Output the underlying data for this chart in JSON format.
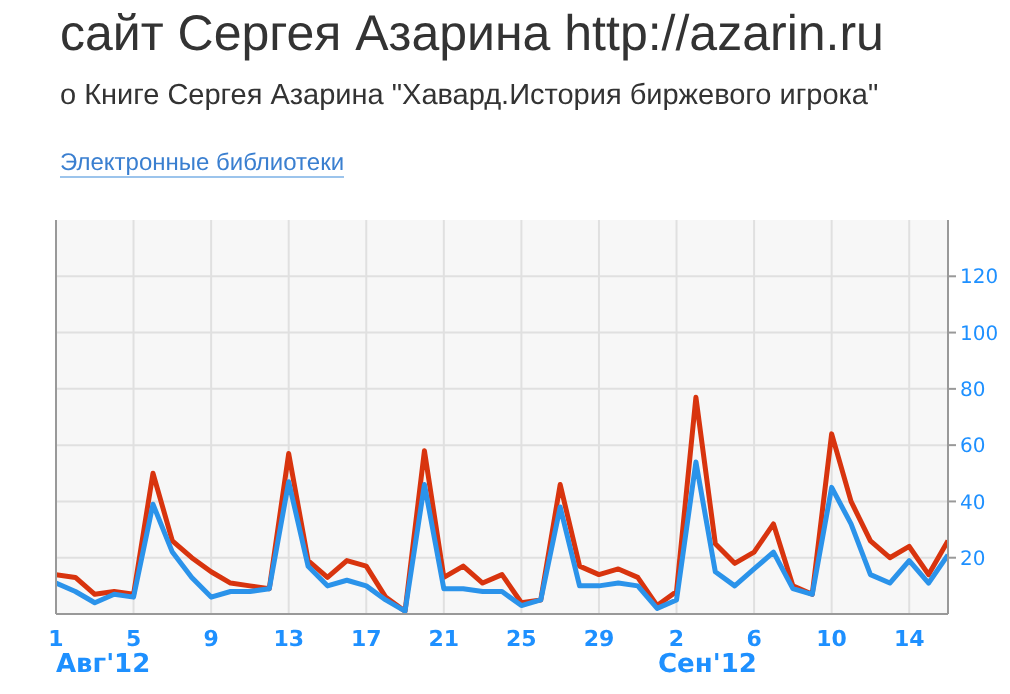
{
  "chart_data": {
    "type": "line",
    "title": "сайт Сергея Азарина http://azarin.ru",
    "subtitle": "о Книге Сергея Азарина \"Хавард.История биржевого игрока\"",
    "annotations": [
      "Электронные библиотеки",
      "Авг'12",
      "Сен'12"
    ],
    "x": [
      "2012-08-01",
      "2012-08-02",
      "2012-08-03",
      "2012-08-04",
      "2012-08-05",
      "2012-08-06",
      "2012-08-07",
      "2012-08-08",
      "2012-08-09",
      "2012-08-10",
      "2012-08-11",
      "2012-08-12",
      "2012-08-13",
      "2012-08-14",
      "2012-08-15",
      "2012-08-16",
      "2012-08-17",
      "2012-08-18",
      "2012-08-19",
      "2012-08-20",
      "2012-08-21",
      "2012-08-22",
      "2012-08-23",
      "2012-08-24",
      "2012-08-25",
      "2012-08-26",
      "2012-08-27",
      "2012-08-28",
      "2012-08-29",
      "2012-08-30",
      "2012-08-31",
      "2012-09-01",
      "2012-09-02",
      "2012-09-03",
      "2012-09-04",
      "2012-09-05",
      "2012-09-06",
      "2012-09-07",
      "2012-09-08",
      "2012-09-09",
      "2012-09-10",
      "2012-09-11",
      "2012-09-12",
      "2012-09-13",
      "2012-09-14",
      "2012-09-15",
      "2012-09-16"
    ],
    "series": [
      {
        "color": "#d8340e",
        "values": [
          14,
          13,
          7,
          8,
          7,
          50,
          26,
          20,
          15,
          11,
          10,
          9,
          57,
          19,
          13,
          19,
          17,
          6,
          1,
          58,
          13,
          17,
          11,
          14,
          4,
          5,
          46,
          17,
          14,
          16,
          13,
          3,
          8,
          77,
          25,
          18,
          22,
          32,
          10,
          7,
          64,
          40,
          26,
          20,
          24,
          14,
          26
        ]
      },
      {
        "color": "#2b93ea",
        "values": [
          11,
          8,
          4,
          7,
          6,
          39,
          22,
          13,
          6,
          8,
          8,
          9,
          47,
          17,
          10,
          12,
          10,
          5,
          1,
          46,
          9,
          9,
          8,
          8,
          3,
          5,
          38,
          10,
          10,
          11,
          10,
          2,
          5,
          54,
          15,
          10,
          16,
          22,
          9,
          7,
          45,
          32,
          14,
          11,
          19,
          11,
          21
        ]
      }
    ],
    "xlim": [
      "2012-08-01",
      "2012-09-16"
    ],
    "xticks": [
      {
        "value": "2012-08-01",
        "label": "1"
      },
      {
        "value": "2012-08-05",
        "label": "5"
      },
      {
        "value": "2012-08-09",
        "label": "9"
      },
      {
        "value": "2012-08-13",
        "label": "13"
      },
      {
        "value": "2012-08-17",
        "label": "17"
      },
      {
        "value": "2012-08-21",
        "label": "21"
      },
      {
        "value": "2012-08-25",
        "label": "25"
      },
      {
        "value": "2012-08-29",
        "label": "29"
      },
      {
        "value": "2012-09-02",
        "label": "2"
      },
      {
        "value": "2012-09-06",
        "label": "6"
      },
      {
        "value": "2012-09-10",
        "label": "10"
      },
      {
        "value": "2012-09-14",
        "label": "14"
      }
    ],
    "ylim": [
      0,
      140
    ],
    "yticks": [
      20,
      40,
      60,
      80,
      100,
      120
    ],
    "grid": true,
    "marker": "none",
    "line_style": "solid"
  }
}
